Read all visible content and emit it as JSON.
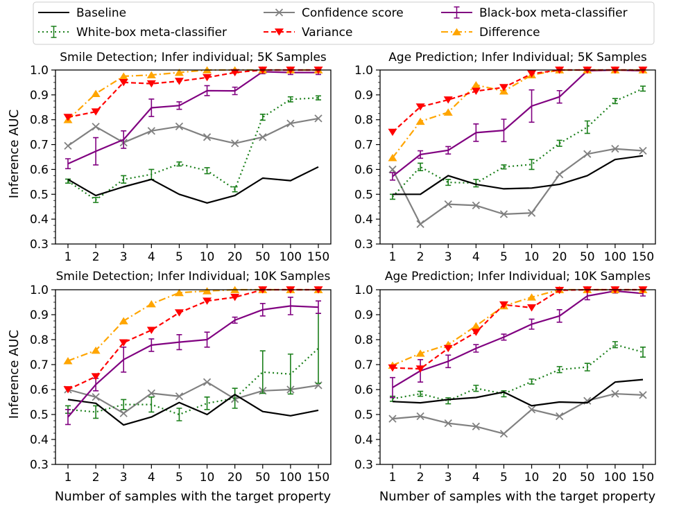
{
  "figure": {
    "xlabel": "Number of samples with the target property",
    "ylabel": "Inference AUC"
  },
  "legend": {
    "placement": "top",
    "entries": [
      {
        "name": "Baseline",
        "color": "#000000",
        "marker": "none",
        "dash": "solid",
        "errorbar": false
      },
      {
        "name": "White-box meta-classifier",
        "color": "#1a7f1a",
        "marker": "none",
        "dash": "dotted",
        "errorbar": true
      },
      {
        "name": "Confidence score",
        "color": "#808080",
        "marker": "x",
        "dash": "solid",
        "errorbar": false
      },
      {
        "name": "Variance",
        "color": "#ff0000",
        "marker": "triangle-down",
        "dash": "dashed",
        "errorbar": false
      },
      {
        "name": "Black-box meta-classifier",
        "color": "#800080",
        "marker": "none",
        "dash": "solid",
        "errorbar": true
      },
      {
        "name": "Difference",
        "color": "#ffa500",
        "marker": "triangle-up",
        "dash": "dashdot",
        "errorbar": false
      }
    ]
  },
  "chart_data": [
    {
      "type": "line",
      "title": "Smile Detection; Infer individual; 5K Samples",
      "categories": [
        "1",
        "2",
        "3",
        "4",
        "5",
        "10",
        "20",
        "50",
        "100",
        "150"
      ],
      "ylim": [
        0.3,
        1.0
      ],
      "yticks": [
        "0.3",
        "0.4",
        "0.5",
        "0.6",
        "0.7",
        "0.8",
        "0.9",
        "1.0"
      ],
      "grid": false,
      "series": [
        {
          "name": "Baseline",
          "values": [
            0.56,
            0.495,
            0.53,
            0.56,
            0.5,
            0.465,
            0.495,
            0.565,
            0.555,
            0.61
          ]
        },
        {
          "name": "White-box meta-classifier",
          "values": [
            0.553,
            0.477,
            0.56,
            0.58,
            0.622,
            0.595,
            0.52,
            0.81,
            0.882,
            0.888
          ],
          "err": [
            0.008,
            0.01,
            0.015,
            0.02,
            0.008,
            0.012,
            0.01,
            0.012,
            0.01,
            0.008
          ]
        },
        {
          "name": "Confidence score",
          "values": [
            0.695,
            0.772,
            0.708,
            0.755,
            0.773,
            0.73,
            0.705,
            0.73,
            0.785,
            0.805
          ]
        },
        {
          "name": "Variance",
          "values": [
            0.81,
            0.832,
            0.95,
            0.945,
            0.955,
            0.97,
            0.99,
            1.0,
            1.0,
            1.0
          ]
        },
        {
          "name": "Black-box meta-classifier",
          "values": [
            0.623,
            0.673,
            0.72,
            0.848,
            0.857,
            0.917,
            0.916,
            0.993,
            0.99,
            0.99
          ],
          "err": [
            0.02,
            0.055,
            0.035,
            0.035,
            0.015,
            0.02,
            0.015,
            0.008,
            0.008,
            0.008
          ]
        },
        {
          "name": "Difference",
          "values": [
            0.8,
            0.905,
            0.975,
            0.98,
            0.99,
            1.0,
            1.0,
            1.0,
            1.0,
            1.0
          ]
        }
      ]
    },
    {
      "type": "line",
      "title": "Age Prediction; Infer Individual; 5K Samples",
      "categories": [
        "1",
        "2",
        "3",
        "4",
        "5",
        "10",
        "20",
        "50",
        "100",
        "150"
      ],
      "ylim": [
        0.3,
        1.0
      ],
      "yticks": [
        "0.3",
        "0.4",
        "0.5",
        "0.6",
        "0.7",
        "0.8",
        "0.9",
        "1.0"
      ],
      "grid": false,
      "series": [
        {
          "name": "Baseline",
          "values": [
            0.5,
            0.5,
            0.575,
            0.54,
            0.522,
            0.525,
            0.54,
            0.575,
            0.64,
            0.655
          ]
        },
        {
          "name": "White-box meta-classifier",
          "values": [
            0.49,
            0.61,
            0.548,
            0.545,
            0.61,
            0.62,
            0.705,
            0.77,
            0.875,
            0.925
          ],
          "err": [
            0.01,
            0.015,
            0.012,
            0.015,
            0.008,
            0.02,
            0.012,
            0.025,
            0.01,
            0.01
          ]
        },
        {
          "name": "Confidence score",
          "values": [
            0.6,
            0.38,
            0.46,
            0.455,
            0.42,
            0.425,
            0.58,
            0.662,
            0.683,
            0.675
          ]
        },
        {
          "name": "Variance",
          "values": [
            0.75,
            0.852,
            0.88,
            0.915,
            0.93,
            0.985,
            1.0,
            1.0,
            1.0,
            1.0
          ]
        },
        {
          "name": "Black-box meta-classifier",
          "values": [
            0.572,
            0.66,
            0.677,
            0.748,
            0.757,
            0.855,
            0.892,
            0.997,
            1.0,
            0.997
          ],
          "err": [
            0.015,
            0.015,
            0.015,
            0.035,
            0.045,
            0.065,
            0.025,
            0.005,
            0.005,
            0.005
          ]
        },
        {
          "name": "Difference",
          "values": [
            0.647,
            0.793,
            0.83,
            0.94,
            0.915,
            0.98,
            1.0,
            1.0,
            1.0,
            1.0
          ]
        }
      ]
    },
    {
      "type": "line",
      "title": "Smile Detection; Infer Individual; 10K Samples",
      "categories": [
        "1",
        "2",
        "3",
        "4",
        "5",
        "10",
        "20",
        "50",
        "100",
        "150"
      ],
      "ylim": [
        0.3,
        1.0
      ],
      "yticks": [
        "0.3",
        "0.4",
        "0.5",
        "0.6",
        "0.7",
        "0.8",
        "0.9",
        "1.0"
      ],
      "grid": false,
      "series": [
        {
          "name": "Baseline",
          "values": [
            0.56,
            0.545,
            0.458,
            0.49,
            0.548,
            0.5,
            0.58,
            0.512,
            0.495,
            0.517
          ]
        },
        {
          "name": "White-box meta-classifier",
          "values": [
            0.52,
            0.51,
            0.54,
            0.54,
            0.5,
            0.545,
            0.565,
            0.67,
            0.662,
            0.765
          ],
          "err": [
            0.015,
            0.025,
            0.02,
            0.03,
            0.025,
            0.025,
            0.04,
            0.085,
            0.08,
            0.14
          ]
        },
        {
          "name": "Confidence score",
          "values": [
            0.6,
            0.57,
            0.505,
            0.585,
            0.573,
            0.63,
            0.562,
            0.595,
            0.6,
            0.617
          ]
        },
        {
          "name": "Variance",
          "values": [
            0.6,
            0.652,
            0.788,
            0.838,
            0.908,
            0.955,
            0.97,
            1.0,
            1.0,
            1.0
          ]
        },
        {
          "name": "Black-box meta-classifier",
          "values": [
            0.49,
            0.62,
            0.72,
            0.778,
            0.79,
            0.8,
            0.878,
            0.92,
            0.935,
            0.93
          ],
          "err": [
            0.03,
            0.025,
            0.05,
            0.025,
            0.03,
            0.03,
            0.012,
            0.025,
            0.035,
            0.025
          ]
        },
        {
          "name": "Difference",
          "values": [
            0.715,
            0.757,
            0.875,
            0.943,
            0.988,
            0.995,
            1.0,
            1.0,
            1.0,
            1.0
          ]
        }
      ]
    },
    {
      "type": "line",
      "title": "Age Prediction; Infer Individual; 10K Samples",
      "categories": [
        "1",
        "2",
        "3",
        "4",
        "5",
        "10",
        "20",
        "50",
        "100",
        "150"
      ],
      "ylim": [
        0.3,
        1.0
      ],
      "yticks": [
        "0.3",
        "0.4",
        "0.5",
        "0.6",
        "0.7",
        "0.8",
        "0.9",
        "1.0"
      ],
      "grid": false,
      "series": [
        {
          "name": "Baseline",
          "values": [
            0.552,
            0.547,
            0.56,
            0.568,
            0.59,
            0.535,
            0.55,
            0.547,
            0.63,
            0.64
          ]
        },
        {
          "name": "White-box meta-classifier",
          "values": [
            0.563,
            0.583,
            0.555,
            0.605,
            0.583,
            0.632,
            0.68,
            0.69,
            0.78,
            0.75
          ],
          "err": [
            0.01,
            0.01,
            0.012,
            0.012,
            0.012,
            0.01,
            0.012,
            0.015,
            0.012,
            0.02
          ]
        },
        {
          "name": "Confidence score",
          "values": [
            0.483,
            0.493,
            0.465,
            0.452,
            0.423,
            0.52,
            0.493,
            0.555,
            0.583,
            0.578
          ]
        },
        {
          "name": "Variance",
          "values": [
            0.687,
            0.683,
            0.765,
            0.83,
            0.94,
            0.928,
            0.998,
            1.0,
            1.0,
            1.0
          ]
        },
        {
          "name": "Black-box meta-classifier",
          "values": [
            0.608,
            0.675,
            0.713,
            0.765,
            0.81,
            0.862,
            0.895,
            0.975,
            0.995,
            0.985
          ],
          "err": [
            0.04,
            0.045,
            0.025,
            0.015,
            0.012,
            0.02,
            0.025,
            0.015,
            0.008,
            0.01
          ]
        },
        {
          "name": "Difference",
          "values": [
            0.697,
            0.745,
            0.78,
            0.855,
            0.935,
            0.97,
            1.0,
            1.0,
            1.0,
            1.0
          ]
        }
      ]
    }
  ]
}
